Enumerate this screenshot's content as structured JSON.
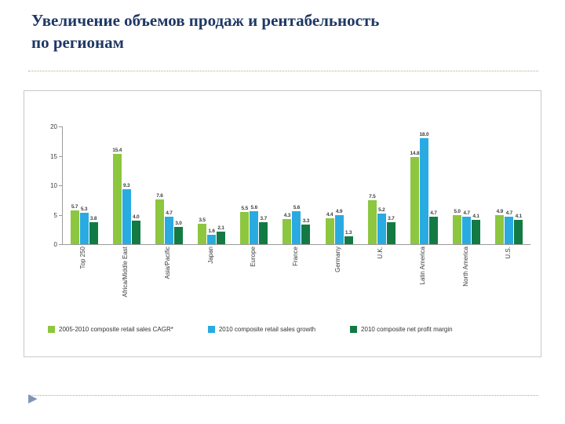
{
  "slide": {
    "title_line1": "Увеличение объемов продаж и рентабельность",
    "title_line2": "по регионам",
    "bullet_icon": "▶"
  },
  "chart_data": {
    "type": "bar",
    "categories": [
      "Top 250",
      "Africa/Middle East",
      "Asia/Pacific",
      "Japan",
      "Europe",
      "France",
      "Germany",
      "U.K.",
      "Latin America",
      "North America",
      "U.S."
    ],
    "series": [
      {
        "name": "2005-2010 composite retail sales CAGR*",
        "color": "#8dc63f",
        "values": [
          5.7,
          15.4,
          7.6,
          3.5,
          5.5,
          4.3,
          4.4,
          7.5,
          14.8,
          5.0,
          4.9
        ]
      },
      {
        "name": "2010 composite retail sales growth",
        "color": "#29abe2",
        "values": [
          5.3,
          9.3,
          4.7,
          1.6,
          5.6,
          5.6,
          4.9,
          5.2,
          18.0,
          4.7,
          4.7
        ]
      },
      {
        "name": "2010 composite net profit margin",
        "color": "#147a43",
        "values": [
          3.8,
          4.0,
          3.0,
          2.1,
          3.7,
          3.3,
          1.3,
          3.7,
          4.7,
          4.1,
          4.1
        ]
      }
    ],
    "ylim": [
      0,
      20
    ],
    "yticks": [
      0,
      5,
      10,
      15,
      20
    ],
    "grid": false,
    "legend_position": "bottom",
    "value_labels": true,
    "xlabel": "",
    "ylabel": ""
  }
}
